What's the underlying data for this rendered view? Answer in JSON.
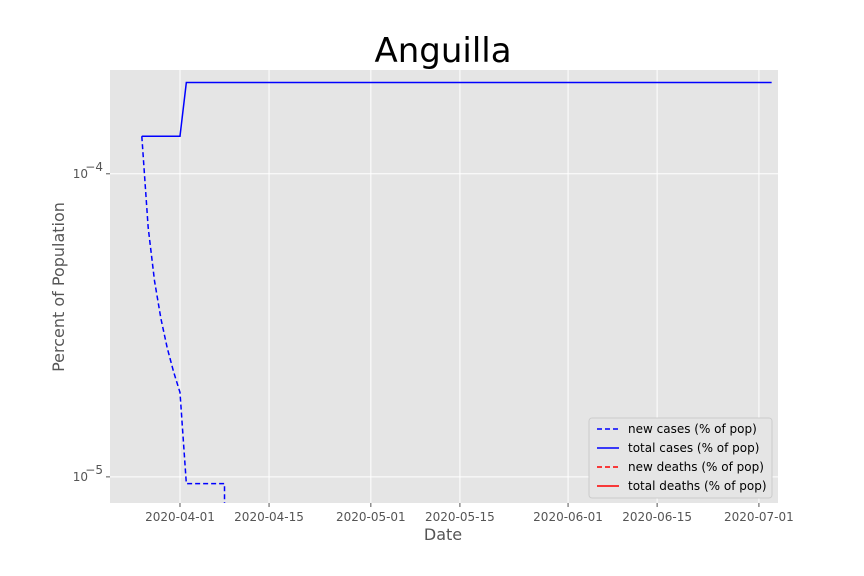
{
  "chart_data": {
    "type": "line",
    "title": "Anguilla",
    "xlabel": "Date",
    "ylabel": "Percent of Population",
    "yscale": "log",
    "grid": true,
    "legend_position": "bottom-right",
    "xlim": [
      "2020-03-21",
      "2020-07-04"
    ],
    "ylim": [
      8.2e-06,
      0.00022
    ],
    "x_ticks": [
      {
        "date": "2020-04-01",
        "label": "2020-04-01"
      },
      {
        "date": "2020-04-15",
        "label": "2020-04-15"
      },
      {
        "date": "2020-05-01",
        "label": "2020-05-01"
      },
      {
        "date": "2020-05-15",
        "label": "2020-05-15"
      },
      {
        "date": "2020-06-01",
        "label": "2020-06-01"
      },
      {
        "date": "2020-06-15",
        "label": "2020-06-15"
      },
      {
        "date": "2020-07-01",
        "label": "2020-07-01"
      }
    ],
    "y_ticks": [
      {
        "value": 0.0001,
        "label_base": "10",
        "label_exp": "−4"
      },
      {
        "value": 1e-05,
        "label_base": "10",
        "label_exp": "−5"
      }
    ],
    "series": [
      {
        "name": "new cases (% of pop)",
        "color": "#0000ff",
        "style": "dashed",
        "points": [
          {
            "x": "2020-03-26",
            "y": 0.000133
          },
          {
            "x": "2020-03-27",
            "y": 6.65e-05
          },
          {
            "x": "2020-03-28",
            "y": 4.43e-05
          },
          {
            "x": "2020-03-29",
            "y": 3.33e-05
          },
          {
            "x": "2020-03-30",
            "y": 2.66e-05
          },
          {
            "x": "2020-03-31",
            "y": 2.22e-05
          },
          {
            "x": "2020-04-01",
            "y": 1.9e-05
          },
          {
            "x": "2020-04-02",
            "y": 9.5e-06
          },
          {
            "x": "2020-04-03",
            "y": 9.5e-06
          },
          {
            "x": "2020-04-04",
            "y": 9.5e-06
          },
          {
            "x": "2020-04-05",
            "y": 9.5e-06
          },
          {
            "x": "2020-04-06",
            "y": 9.5e-06
          },
          {
            "x": "2020-04-07",
            "y": 9.5e-06
          },
          {
            "x": "2020-04-08",
            "y": 9.5e-06
          },
          {
            "x": "2020-04-08",
            "y": 8e-06
          }
        ]
      },
      {
        "name": "total cases (% of pop)",
        "color": "#0000ff",
        "style": "solid",
        "points": [
          {
            "x": "2020-03-26",
            "y": 0.000133
          },
          {
            "x": "2020-04-01",
            "y": 0.000133
          },
          {
            "x": "2020-04-02",
            "y": 0.0002
          },
          {
            "x": "2020-07-03",
            "y": 0.0002
          }
        ]
      },
      {
        "name": "new deaths (% of pop)",
        "color": "#ff0000",
        "style": "dashed",
        "points": []
      },
      {
        "name": "total deaths (% of pop)",
        "color": "#ff0000",
        "style": "solid",
        "points": []
      }
    ]
  }
}
